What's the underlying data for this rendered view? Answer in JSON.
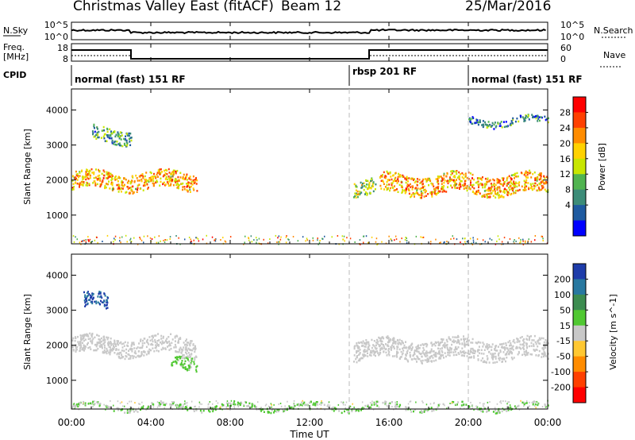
{
  "header": {
    "title": "Christmas Valley East (fitACF)",
    "beam": "Beam 12",
    "date": "25/Mar/2016"
  },
  "nsky": {
    "label": "N.Sky",
    "ticks": [
      "10^5",
      "10^0"
    ],
    "right_ticks": [
      "10^5",
      "10^0"
    ],
    "right_label": "N.Search"
  },
  "freq": {
    "label_line1": "Freq.",
    "label_line2": "[MHz]",
    "ticks": [
      "18",
      "8"
    ],
    "right_ticks": [
      "60",
      "0"
    ],
    "right_label": "Nave"
  },
  "cpid": {
    "label": "CPID",
    "segments": [
      {
        "label": "normal (fast) 151 RF",
        "start_hour": 0
      },
      {
        "label": "rbsp 201 RF",
        "start_hour": 14
      },
      {
        "label": "normal (fast) 151 RF",
        "start_hour": 20
      }
    ]
  },
  "power_panel": {
    "ylabel": "Slant Range [km]",
    "yticks": [
      "4000",
      "3000",
      "2000",
      "1000"
    ],
    "colorbar_label": "Power [dB]",
    "colorbar_ticks": [
      "28",
      "24",
      "20",
      "16",
      "12",
      "8",
      "4"
    ],
    "colorbar_colors": [
      "#ff0000",
      "#ff4000",
      "#ff8c00",
      "#ffd200",
      "#c8e600",
      "#50b450",
      "#3c8c78",
      "#1e5aa0",
      "#0000ff"
    ]
  },
  "velocity_panel": {
    "ylabel": "Slant Range [km]",
    "yticks": [
      "4000",
      "3000",
      "2000",
      "1000"
    ],
    "colorbar_label": "Velocity [m s^-1]",
    "colorbar_ticks": [
      "200",
      "100",
      "50",
      "15",
      "-15",
      "-50",
      "-100",
      "-200"
    ],
    "colorbar_colors": [
      "#1e3caa",
      "#2878a0",
      "#3c8c50",
      "#50c832",
      "#c8c8c8",
      "#ffc832",
      "#ff8c00",
      "#ff4000",
      "#ff0000"
    ]
  },
  "xaxis": {
    "label": "Time UT",
    "ticks": [
      "00:00",
      "04:00",
      "08:00",
      "12:00",
      "16:00",
      "20:00",
      "00:00"
    ]
  },
  "chart_data": {
    "type": "heatmap",
    "title": "Christmas Valley East (fitACF)",
    "subtitle": "Beam 12",
    "date": "25/Mar/2016",
    "xlabel": "Time UT",
    "x_range_hours": [
      0,
      24
    ],
    "ylabel": "Slant Range [km]",
    "y_range_km": [
      180,
      4600
    ],
    "panels": [
      {
        "name": "Power [dB]",
        "colorbar_range": [
          0,
          30
        ],
        "regions": [
          {
            "t0": 0.0,
            "t1": 6.3,
            "r_center": 2000,
            "r_halfwidth": 250,
            "value": 20
          },
          {
            "t0": 1.0,
            "t1": 3.0,
            "r_center": 3300,
            "r_halfwidth": 200,
            "value": 10
          },
          {
            "t0": 14.2,
            "t1": 15.3,
            "r_center": 1800,
            "r_halfwidth": 220,
            "value": 14
          },
          {
            "t0": 15.5,
            "t1": 24.0,
            "r_center": 1900,
            "r_halfwidth": 280,
            "value": 20
          },
          {
            "t0": 20.0,
            "t1": 24.0,
            "r_center": 3700,
            "r_halfwidth": 100,
            "value": 8
          }
        ]
      },
      {
        "name": "Velocity [m s^-1]",
        "colorbar_range": [
          -250,
          250
        ],
        "regions": [
          {
            "t0": 0.6,
            "t1": 1.8,
            "r_center": 3250,
            "r_halfwidth": 220,
            "value": 200
          },
          {
            "t0": 0.0,
            "t1": 6.3,
            "r_center": 2000,
            "r_halfwidth": 250,
            "value": 0
          },
          {
            "t0": 5.0,
            "t1": 6.3,
            "r_center": 1550,
            "r_halfwidth": 200,
            "value": 40
          },
          {
            "t0": 14.2,
            "t1": 24.0,
            "r_center": 1900,
            "r_halfwidth": 280,
            "value": 0
          },
          {
            "t0": 0.0,
            "t1": 24.0,
            "r_center": 260,
            "r_halfwidth": 60,
            "value": 30
          }
        ]
      }
    ],
    "nsky_series": {
      "step_up_at_hours": [
        3.0
      ],
      "step_down_at_hours": [
        15.0
      ]
    },
    "freq_series": {
      "levels": [
        {
          "t0": 0,
          "t1": 3,
          "value": "upper"
        },
        {
          "t0": 3,
          "t1": 15,
          "value": "lower"
        },
        {
          "t0": 15,
          "t1": 24,
          "value": "upper"
        }
      ]
    },
    "cpid_boundaries_hours": [
      14,
      20
    ]
  }
}
